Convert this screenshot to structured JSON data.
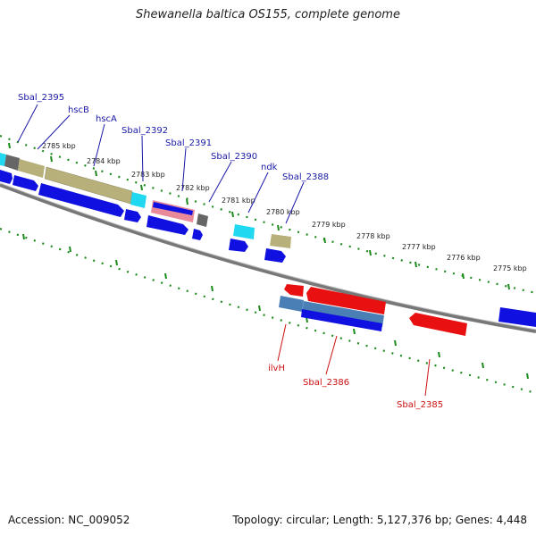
{
  "title": "Shewanella baltica OS155, complete genome",
  "footer": {
    "accession": "Accession: NC_009052",
    "summary": "Topology: circular; Length: 5,127,376 bp; Genes: 4,448"
  },
  "colors": {
    "backbone": "#808080",
    "tick": "#1e8a1e",
    "forward_label": "#1a1aa6",
    "reverse_label": "#cc1111",
    "cds_blue": "#1010e0",
    "cds_red": "#e81010",
    "tan": "#b8b07a",
    "cyan": "#20d8f0",
    "gray_feature": "#666666",
    "steelblue": "#4a7fb5",
    "pink": "#e88a9a"
  },
  "tick_labels": [
    "2785 kbp",
    "2784 kbp",
    "2783 kbp",
    "2782 kbp",
    "2781 kbp",
    "2780 kbp",
    "2779 kbp",
    "2778 kbp",
    "2777 kbp",
    "2776 kbp",
    "2775 kbp"
  ],
  "forward_genes": [
    "Sbal_2395",
    "hscB",
    "hscA",
    "Sbal_2392",
    "Sbal_2391",
    "Sbal_2390",
    "ndk",
    "Sbal_2388"
  ],
  "reverse_genes": [
    "ilvH",
    "Sbal_2386",
    "Sbal_2385"
  ]
}
